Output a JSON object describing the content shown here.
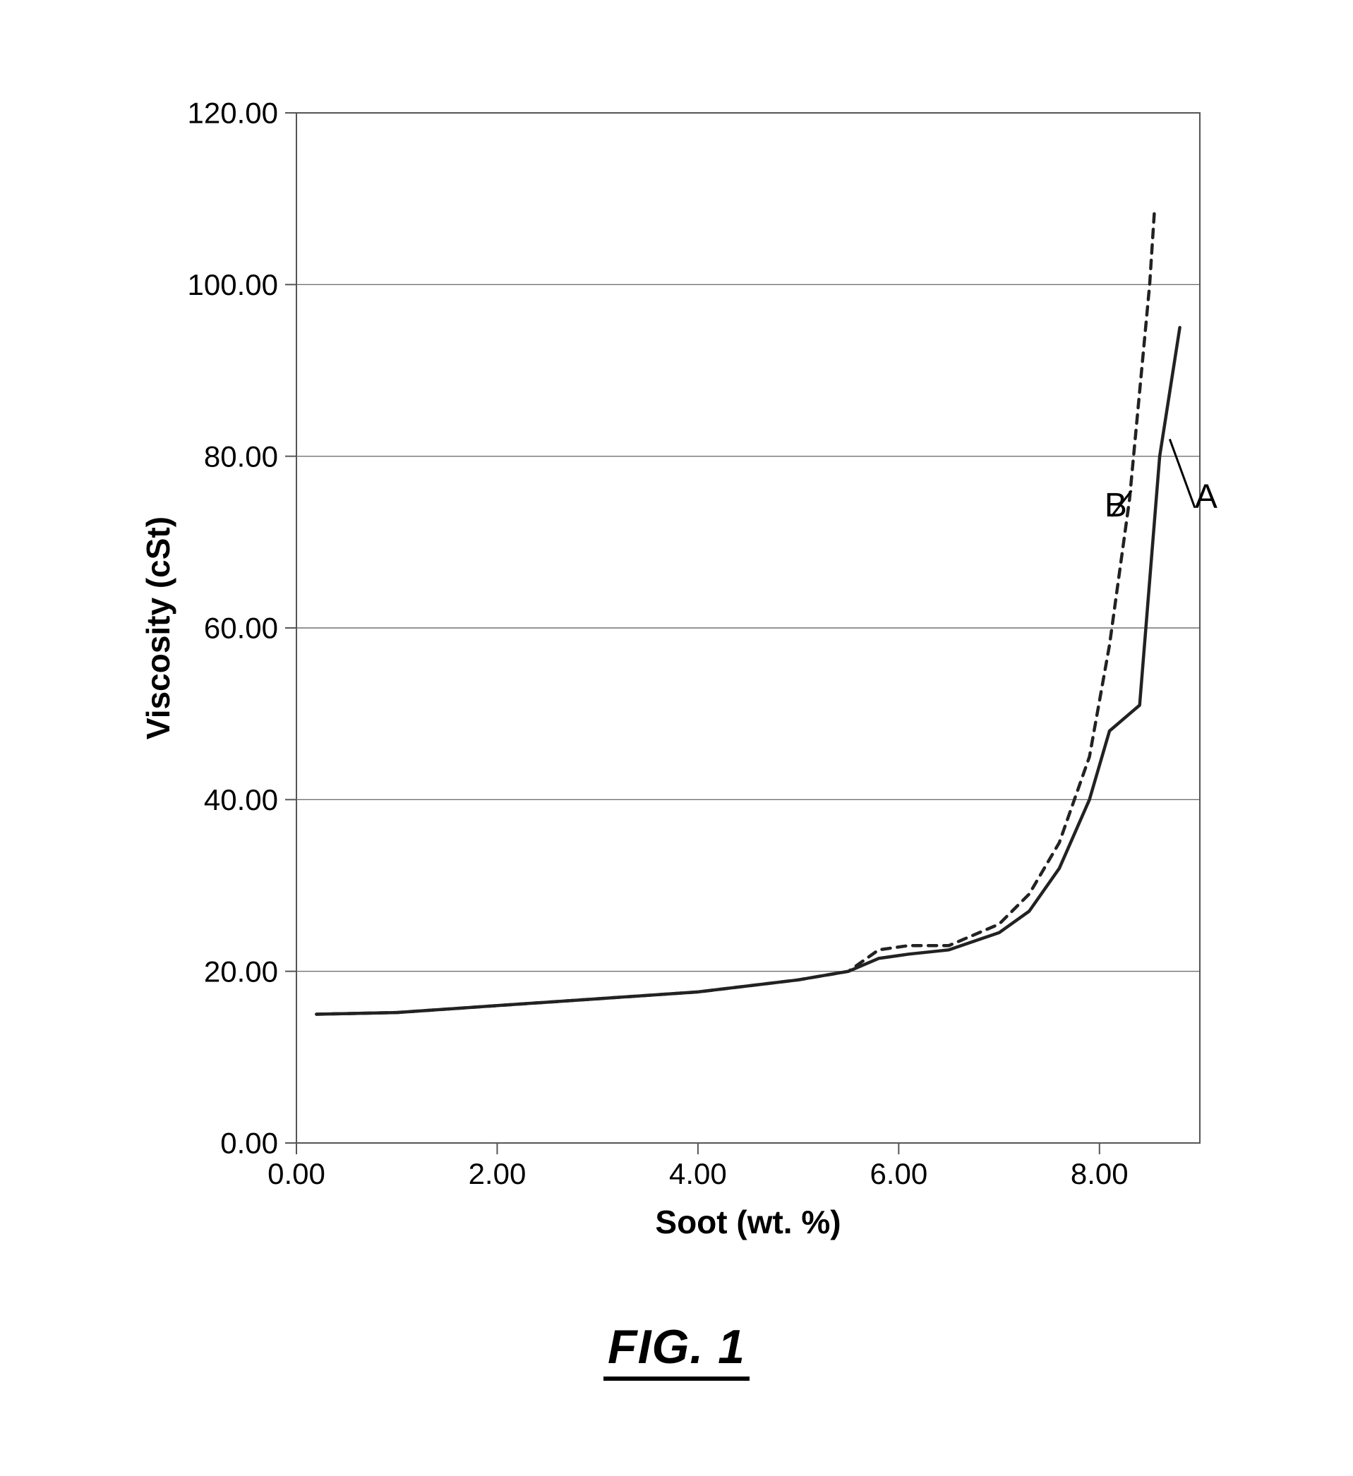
{
  "figure": {
    "caption": "FIG. 1",
    "chart": {
      "type": "line",
      "background_color": "#ffffff",
      "plot_border_color": "#555555",
      "grid_color": "#555555",
      "grid_line_width": 1.2,
      "x": {
        "label": "Soot (wt. %)",
        "lim": [
          0.0,
          9.0
        ],
        "ticks": [
          0.0,
          2.0,
          4.0,
          6.0,
          8.0
        ],
        "tick_labels": [
          "0.00",
          "2.00",
          "4.00",
          "6.00",
          "8.00"
        ],
        "tick_fontsize": 42,
        "label_fontsize": 46,
        "label_fontweight": "700"
      },
      "y": {
        "label": "Viscosity (cSt)",
        "lim": [
          0.0,
          120.0
        ],
        "ticks": [
          0.0,
          20.0,
          40.0,
          60.0,
          80.0,
          100.0,
          120.0
        ],
        "tick_labels": [
          "0.00",
          "20.00",
          "40.00",
          "60.00",
          "80.00",
          "100.00",
          "120.00"
        ],
        "tick_fontsize": 42,
        "label_fontsize": 46,
        "label_fontweight": "700"
      },
      "series": [
        {
          "name": "A",
          "label": "A",
          "label_fontsize": 48,
          "color": "#222222",
          "line_width": 4.5,
          "dash": "none",
          "x": [
            0.2,
            1.0,
            2.0,
            3.0,
            4.0,
            5.0,
            5.5,
            5.8,
            6.1,
            6.5,
            7.0,
            7.3,
            7.6,
            7.9,
            8.1,
            8.3,
            8.4,
            8.6,
            8.8
          ],
          "y": [
            15.0,
            15.2,
            16.0,
            16.8,
            17.6,
            19.0,
            20.0,
            21.5,
            22.0,
            22.5,
            24.5,
            27.0,
            32.0,
            40.0,
            48.0,
            50.0,
            51.0,
            80.0,
            95.0
          ],
          "label_anchor": {
            "x": 8.95,
            "y": 74.0
          },
          "leader": {
            "from": {
              "x": 8.95,
              "y": 74.0
            },
            "to": {
              "x": 8.7,
              "y": 82.0
            }
          }
        },
        {
          "name": "B",
          "label": "B",
          "label_fontsize": 48,
          "color": "#222222",
          "line_width": 4.5,
          "dash": "12,10",
          "x": [
            0.2,
            1.0,
            2.0,
            3.0,
            4.0,
            5.0,
            5.5,
            5.8,
            6.1,
            6.5,
            7.0,
            7.3,
            7.6,
            7.9,
            8.1,
            8.3,
            8.5,
            8.55
          ],
          "y": [
            15.0,
            15.2,
            16.0,
            16.8,
            17.6,
            19.0,
            20.0,
            22.5,
            23.0,
            23.0,
            25.5,
            29.0,
            35.0,
            45.0,
            58.0,
            75.0,
            100.0,
            109.0
          ],
          "label_anchor": {
            "x": 8.05,
            "y": 73.0
          },
          "leader": {
            "from": {
              "x": 8.12,
              "y": 73.0
            },
            "to": {
              "x": 8.32,
              "y": 76.0
            }
          }
        }
      ]
    }
  }
}
